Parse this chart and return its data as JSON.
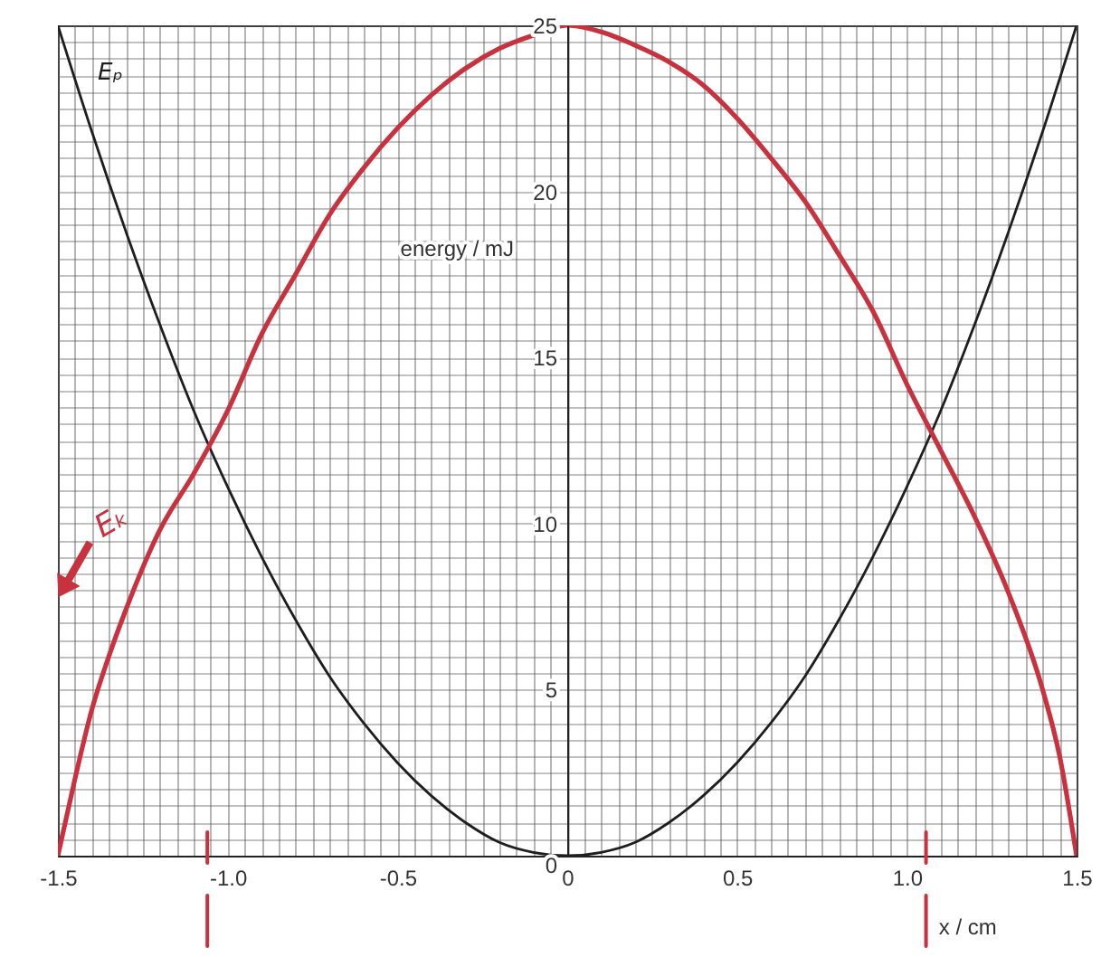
{
  "chart_data": {
    "type": "line",
    "xlabel": "x / cm",
    "ylabel": "energy / mJ",
    "xlim": [
      -1.5,
      1.5
    ],
    "ylim": [
      0,
      25
    ],
    "xticks": [
      -1.5,
      {
        "value": -1.45,
        "label": null
      },
      {
        "value": -1.4,
        "label": null
      },
      {
        "value": -1.35,
        "label": null
      },
      {
        "value": -1.3,
        "label": null
      },
      {
        "value": -1.25,
        "label": null
      },
      {
        "value": -1.2,
        "label": null
      },
      {
        "value": -1.15,
        "label": null
      },
      {
        "value": -1.1,
        "label": null
      },
      {
        "value": -1.05,
        "label": null
      },
      {
        "value": -1,
        "label": "-1.0"
      },
      {
        "value": -0.95,
        "label": null
      },
      {
        "value": -0.9,
        "label": null
      },
      {
        "value": -0.85,
        "label": null
      },
      {
        "value": -0.8,
        "label": null
      },
      {
        "value": -0.75,
        "label": null
      },
      {
        "value": -0.7,
        "label": null
      },
      {
        "value": -0.65,
        "label": null
      },
      {
        "value": -0.6,
        "label": null
      },
      {
        "value": -0.55,
        "label": null
      },
      -0.5,
      {
        "value": -0.45,
        "label": null
      },
      {
        "value": -0.4,
        "label": null
      },
      {
        "value": -0.35,
        "label": null
      },
      {
        "value": -0.3,
        "label": null
      },
      {
        "value": -0.25,
        "label": null
      },
      {
        "value": -0.2,
        "label": null
      },
      {
        "value": -0.15,
        "label": null
      },
      {
        "value": -0.1,
        "label": null
      },
      {
        "value": -0.05,
        "label": null
      },
      0,
      {
        "value": 0.05,
        "label": null
      },
      {
        "value": 0.1,
        "label": null
      },
      {
        "value": 0.15,
        "label": null
      },
      {
        "value": 0.2,
        "label": null
      },
      {
        "value": 0.25,
        "label": null
      },
      {
        "value": 0.3,
        "label": null
      },
      {
        "value": 0.35,
        "label": null
      },
      {
        "value": 0.4,
        "label": null
      },
      {
        "value": 0.45,
        "label": null
      },
      0.5,
      {
        "value": 0.55,
        "label": null
      },
      {
        "value": 0.6,
        "label": null
      },
      {
        "value": 0.65,
        "label": null
      },
      {
        "value": 0.7,
        "label": null
      },
      {
        "value": 0.75,
        "label": null
      },
      {
        "value": 0.8,
        "label": null
      },
      {
        "value": 0.85,
        "label": null
      },
      {
        "value": 0.9,
        "label": null
      },
      {
        "value": 0.95,
        "label": null
      },
      {
        "value": 1,
        "label": "1.0"
      },
      {
        "value": 1.05,
        "label": null
      },
      {
        "value": 1.1,
        "label": null
      },
      {
        "value": 1.15,
        "label": null
      },
      {
        "value": 1.2,
        "label": null
      },
      {
        "value": 1.25,
        "label": null
      },
      {
        "value": 1.3,
        "label": null
      },
      {
        "value": 1.35,
        "label": null
      },
      {
        "value": 1.4,
        "label": null
      },
      {
        "value": 1.45,
        "label": null
      },
      1.5
    ],
    "yticks": [
      0,
      {
        "value": 0.5,
        "label": null
      },
      {
        "value": 1,
        "label": null
      },
      {
        "value": 1.5,
        "label": null
      },
      {
        "value": 2,
        "label": null
      },
      {
        "value": 2.5,
        "label": null
      },
      {
        "value": 3,
        "label": null
      },
      {
        "value": 3.5,
        "label": null
      },
      {
        "value": 4,
        "label": null
      },
      {
        "value": 4.5,
        "label": null
      },
      5,
      {
        "value": 5.5,
        "label": null
      },
      {
        "value": 6,
        "label": null
      },
      {
        "value": 6.5,
        "label": null
      },
      {
        "value": 7,
        "label": null
      },
      {
        "value": 7.5,
        "label": null
      },
      {
        "value": 8,
        "label": null
      },
      {
        "value": 8.5,
        "label": null
      },
      {
        "value": 9,
        "label": null
      },
      {
        "value": 9.5,
        "label": null
      },
      10,
      {
        "value": 10.5,
        "label": null
      },
      {
        "value": 11,
        "label": null
      },
      {
        "value": 11.5,
        "label": null
      },
      {
        "value": 12,
        "label": null
      },
      {
        "value": 12.5,
        "label": null
      },
      {
        "value": 13,
        "label": null
      },
      {
        "value": 13.5,
        "label": null
      },
      {
        "value": 14,
        "label": null
      },
      {
        "value": 14.5,
        "label": null
      },
      15,
      {
        "value": 15.5,
        "label": null
      },
      {
        "value": 16,
        "label": null
      },
      {
        "value": 16.5,
        "label": null
      },
      {
        "value": 17,
        "label": null
      },
      {
        "value": 17.5,
        "label": null
      },
      {
        "value": 18,
        "label": null
      },
      {
        "value": 18.5,
        "label": null
      },
      {
        "value": 19,
        "label": null
      },
      {
        "value": 19.5,
        "label": null
      },
      20,
      {
        "value": 20.5,
        "label": null
      },
      {
        "value": 21,
        "label": null
      },
      {
        "value": 21.5,
        "label": null
      },
      {
        "value": 22,
        "label": null
      },
      {
        "value": 22.5,
        "label": null
      },
      {
        "value": 23,
        "label": null
      },
      {
        "value": 23.5,
        "label": null
      },
      {
        "value": 24,
        "label": null
      },
      {
        "value": 24.5,
        "label": null
      },
      25
    ],
    "grid": true,
    "series": [
      {
        "name": "Eₚ",
        "color": "#1e1e1e",
        "x": [
          -1.5,
          -1.4,
          -1.3,
          -1.2,
          -1.1,
          -1.0,
          -0.9,
          -0.8,
          -0.7,
          -0.6,
          -0.5,
          -0.4,
          -0.3,
          -0.2,
          -0.1,
          0,
          0.1,
          0.2,
          0.3,
          0.4,
          0.5,
          0.6,
          0.7,
          0.8,
          0.9,
          1.0,
          1.1,
          1.2,
          1.3,
          1.4,
          1.5
        ],
        "values": [
          25.0,
          21.8,
          18.8,
          16.0,
          13.4,
          11.1,
          9.0,
          7.1,
          5.4,
          4.0,
          2.8,
          1.8,
          1.0,
          0.4,
          0.1,
          0,
          0.1,
          0.4,
          1.0,
          1.8,
          2.8,
          4.0,
          5.4,
          7.1,
          9.0,
          11.1,
          13.4,
          16.0,
          18.8,
          21.8,
          25.0
        ]
      },
      {
        "name": "Eₖ",
        "color": "#c8323f",
        "x": [
          -1.5,
          -1.45,
          -1.4,
          -1.35,
          -1.3,
          -1.2,
          -1.1,
          -1.0,
          -0.9,
          -0.8,
          -0.7,
          -0.6,
          -0.5,
          -0.4,
          -0.3,
          -0.2,
          -0.1,
          0,
          0.1,
          0.2,
          0.3,
          0.4,
          0.5,
          0.6,
          0.7,
          0.8,
          0.9,
          1.0,
          1.1,
          1.2,
          1.3,
          1.4,
          1.45,
          1.5
        ],
        "values": [
          0,
          2.3,
          4.4,
          6.0,
          7.4,
          9.8,
          11.5,
          13.4,
          15.7,
          17.5,
          19.3,
          20.7,
          21.9,
          22.9,
          23.7,
          24.3,
          24.7,
          25,
          24.8,
          24.4,
          23.9,
          23.2,
          22.2,
          21.0,
          19.7,
          18.1,
          16.4,
          14.2,
          12.2,
          10.2,
          7.9,
          5.0,
          3.0,
          0
        ]
      }
    ]
  }
}
